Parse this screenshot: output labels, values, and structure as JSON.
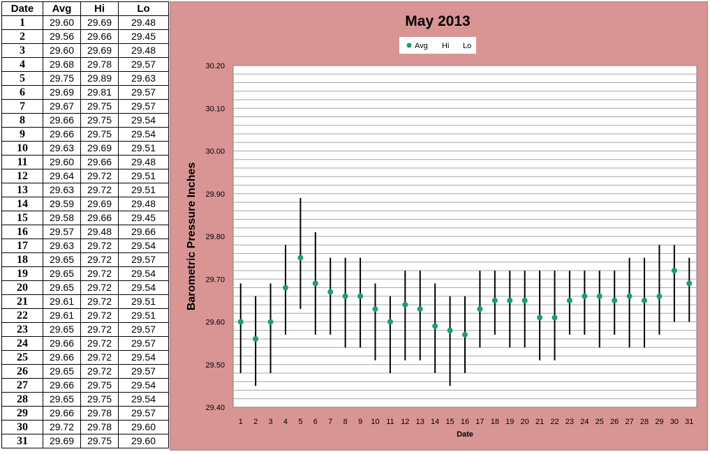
{
  "table": {
    "headers": [
      "Date",
      "Avg",
      "Hi",
      "Lo"
    ],
    "rows": [
      [
        "1",
        "29.60",
        "29.69",
        "29.48"
      ],
      [
        "2",
        "29.56",
        "29.66",
        "29.45"
      ],
      [
        "3",
        "29.60",
        "29.69",
        "29.48"
      ],
      [
        "4",
        "29.68",
        "29.78",
        "29.57"
      ],
      [
        "5",
        "29.75",
        "29.89",
        "29.63"
      ],
      [
        "6",
        "29.69",
        "29.81",
        "29.57"
      ],
      [
        "7",
        "29.67",
        "29.75",
        "29.57"
      ],
      [
        "8",
        "29.66",
        "29.75",
        "29.54"
      ],
      [
        "9",
        "29.66",
        "29.75",
        "29.54"
      ],
      [
        "10",
        "29.63",
        "29.69",
        "29.51"
      ],
      [
        "11",
        "29.60",
        "29.66",
        "29.48"
      ],
      [
        "12",
        "29.64",
        "29.72",
        "29.51"
      ],
      [
        "13",
        "29.63",
        "29.72",
        "29.51"
      ],
      [
        "14",
        "29.59",
        "29.69",
        "29.48"
      ],
      [
        "15",
        "29.58",
        "29.66",
        "29.45"
      ],
      [
        "16",
        "29.57",
        "29.48",
        "29.66"
      ],
      [
        "17",
        "29.63",
        "29.72",
        "29.54"
      ],
      [
        "18",
        "29.65",
        "29.72",
        "29.57"
      ],
      [
        "19",
        "29.65",
        "29.72",
        "29.54"
      ],
      [
        "20",
        "29.65",
        "29.72",
        "29.54"
      ],
      [
        "21",
        "29.61",
        "29.72",
        "29.51"
      ],
      [
        "22",
        "29.61",
        "29.72",
        "29.51"
      ],
      [
        "23",
        "29.65",
        "29.72",
        "29.57"
      ],
      [
        "24",
        "29.66",
        "29.72",
        "29.57"
      ],
      [
        "25",
        "29.66",
        "29.72",
        "29.54"
      ],
      [
        "26",
        "29.65",
        "29.72",
        "29.57"
      ],
      [
        "27",
        "29.66",
        "29.75",
        "29.54"
      ],
      [
        "28",
        "29.65",
        "29.75",
        "29.54"
      ],
      [
        "29",
        "29.66",
        "29.78",
        "29.57"
      ],
      [
        "30",
        "29.72",
        "29.78",
        "29.60"
      ],
      [
        "31",
        "29.69",
        "29.75",
        "29.60"
      ]
    ]
  },
  "chart_data": {
    "type": "scatter",
    "title": "May 2013",
    "xlabel": "Date",
    "ylabel": "Barometric  Pressure  Inches",
    "ylim": [
      29.4,
      30.2
    ],
    "y_ticks": [
      "29.40",
      "29.50",
      "29.60",
      "29.70",
      "29.80",
      "29.90",
      "30.00",
      "30.10",
      "30.20"
    ],
    "grid": true,
    "legend": {
      "position": "top-center",
      "entries": [
        "Avg",
        "Hi",
        "Lo"
      ]
    },
    "x": [
      "1",
      "2",
      "3",
      "4",
      "5",
      "6",
      "7",
      "8",
      "9",
      "10",
      "11",
      "12",
      "13",
      "14",
      "15",
      "16",
      "17",
      "18",
      "19",
      "20",
      "21",
      "22",
      "23",
      "24",
      "25",
      "26",
      "27",
      "28",
      "29",
      "30",
      "31"
    ],
    "series": [
      {
        "name": "Avg",
        "values": [
          29.6,
          29.56,
          29.6,
          29.68,
          29.75,
          29.69,
          29.67,
          29.66,
          29.66,
          29.63,
          29.6,
          29.64,
          29.63,
          29.59,
          29.58,
          29.57,
          29.63,
          29.65,
          29.65,
          29.65,
          29.61,
          29.61,
          29.65,
          29.66,
          29.66,
          29.65,
          29.66,
          29.65,
          29.66,
          29.72,
          29.69
        ]
      },
      {
        "name": "Hi",
        "values": [
          29.69,
          29.66,
          29.69,
          29.78,
          29.89,
          29.81,
          29.75,
          29.75,
          29.75,
          29.69,
          29.66,
          29.72,
          29.72,
          29.69,
          29.66,
          29.48,
          29.72,
          29.72,
          29.72,
          29.72,
          29.72,
          29.72,
          29.72,
          29.72,
          29.72,
          29.72,
          29.75,
          29.75,
          29.78,
          29.78,
          29.75
        ]
      },
      {
        "name": "Lo",
        "values": [
          29.48,
          29.45,
          29.48,
          29.57,
          29.63,
          29.57,
          29.57,
          29.54,
          29.54,
          29.51,
          29.48,
          29.51,
          29.51,
          29.48,
          29.45,
          29.66,
          29.54,
          29.57,
          29.54,
          29.54,
          29.51,
          29.51,
          29.57,
          29.57,
          29.54,
          29.57,
          29.54,
          29.54,
          29.57,
          29.6,
          29.6
        ]
      }
    ],
    "colors": {
      "avg_marker": "#1e9e6e",
      "range_line": "#000000",
      "plot_background": "#ffffff",
      "panel_background": "#d99594",
      "gridline": "#a6a6a6"
    }
  }
}
